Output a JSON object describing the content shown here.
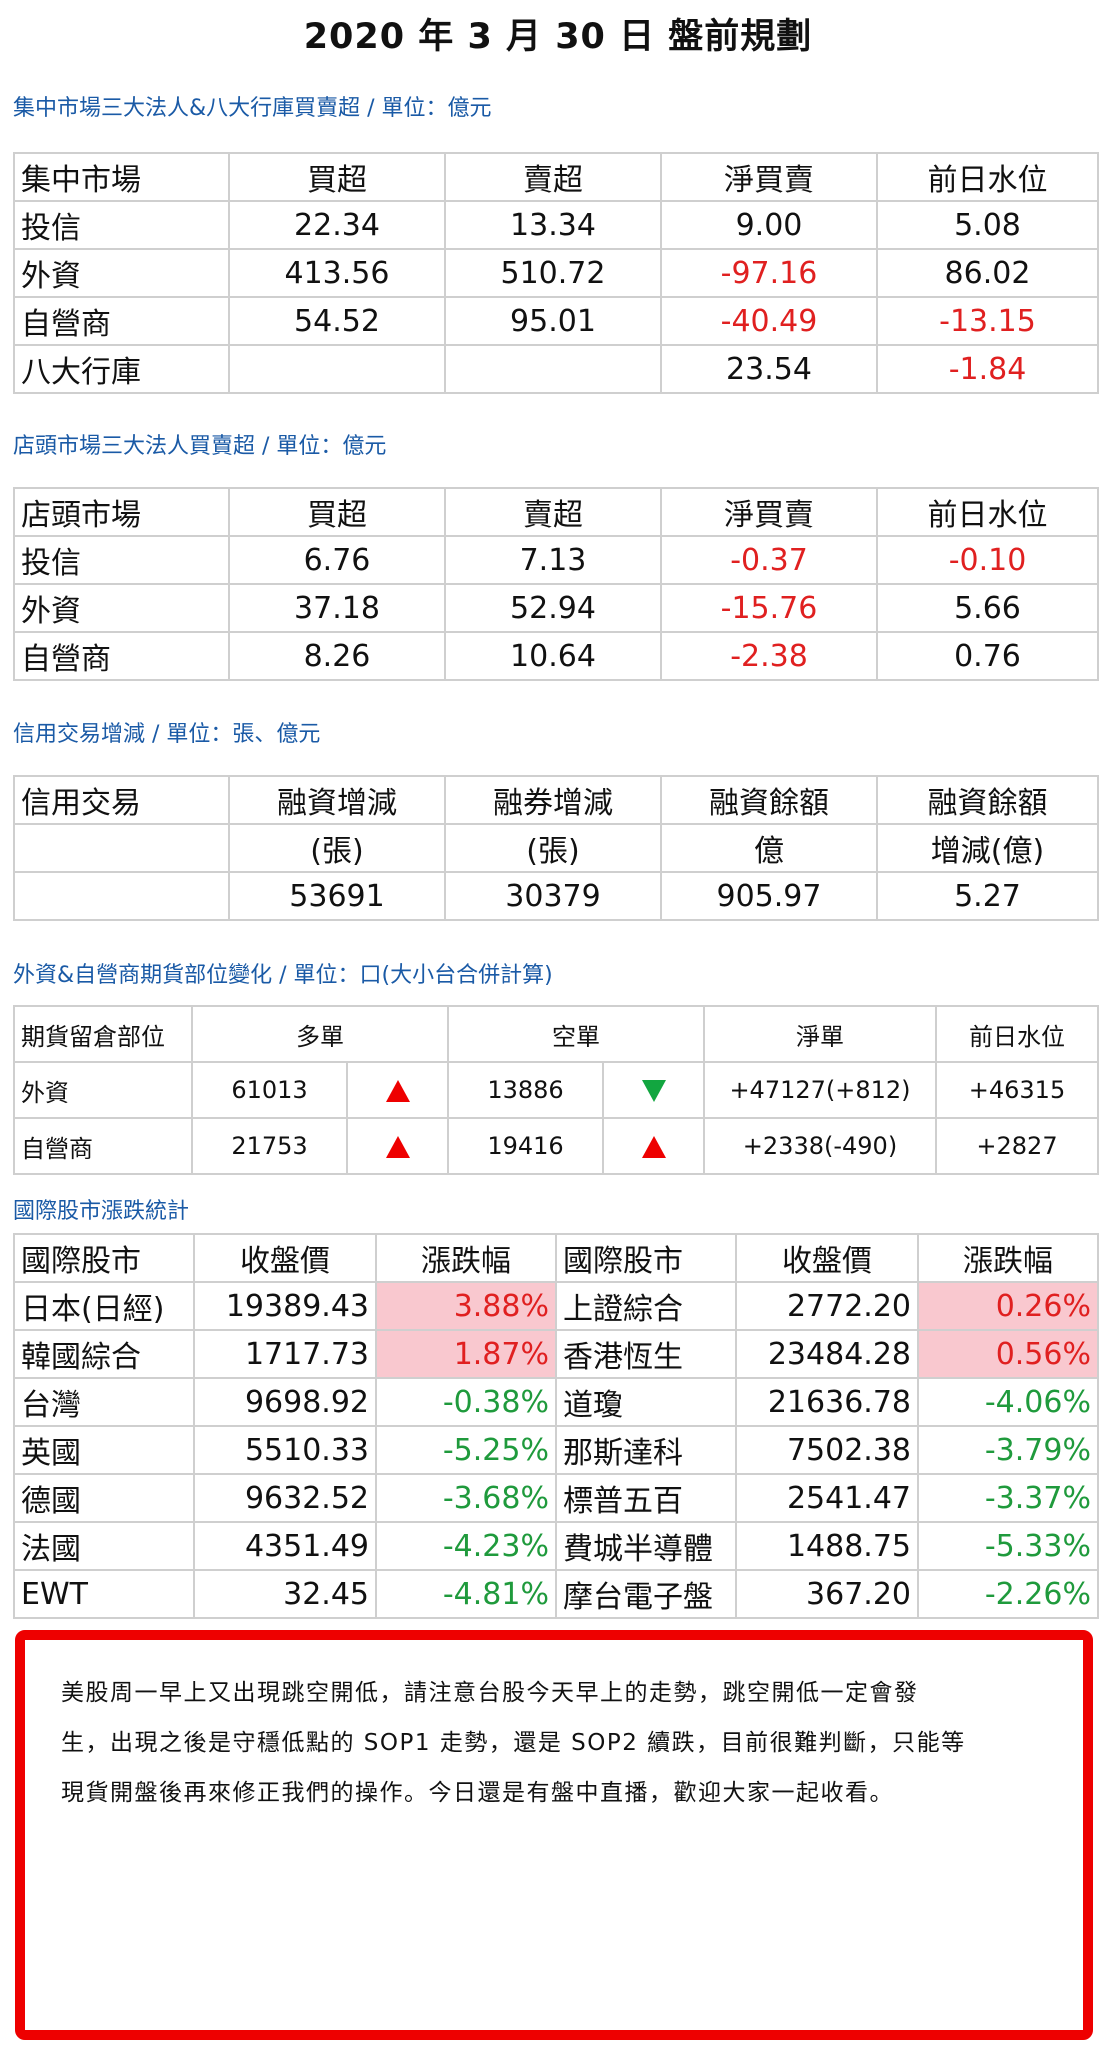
{
  "title": "2020 年 3 月 30 日  盤前規劃",
  "sec1": {
    "heading": "集中市場三大法人&八大行庫買賣超 / 單位：億元",
    "header": [
      "集中市場",
      "買超",
      "賣超",
      "淨買賣",
      "前日水位"
    ],
    "rows": [
      [
        "投信",
        "22.34",
        "13.34",
        "9.00",
        "5.08"
      ],
      [
        "外資",
        "413.56",
        "510.72",
        "-97.16",
        "86.02"
      ],
      [
        "自營商",
        "54.52",
        "95.01",
        "-40.49",
        "-13.15"
      ],
      [
        "八大行庫",
        "",
        "",
        "23.54",
        "-1.84"
      ]
    ]
  },
  "sec2": {
    "heading": "店頭市場三大法人買賣超 / 單位：億元",
    "header": [
      "店頭市場",
      "買超",
      "賣超",
      "淨買賣",
      "前日水位"
    ],
    "rows": [
      [
        "投信",
        "6.76",
        "7.13",
        "-0.37",
        "-0.10"
      ],
      [
        "外資",
        "37.18",
        "52.94",
        "-15.76",
        "5.66"
      ],
      [
        "自營商",
        "8.26",
        "10.64",
        "-2.38",
        "0.76"
      ]
    ]
  },
  "sec3": {
    "heading": "信用交易增減 / 單位：張、億元",
    "header": [
      "信用交易",
      "融資增減",
      "融券增減",
      "融資餘額",
      "融資餘額"
    ],
    "units": [
      "",
      "(張)",
      "(張)",
      "億",
      "增減(億)"
    ],
    "values": [
      "",
      "53691",
      "30379",
      "905.97",
      "5.27"
    ]
  },
  "sec4": {
    "heading": "外資&自營商期貨部位變化 / 單位：口(大小台合併計算)",
    "header": [
      "期貨留倉部位",
      "多單",
      "空單",
      "淨單",
      "前日水位"
    ],
    "rows": [
      {
        "name": "外資",
        "long": "61013",
        "long_dir": "up",
        "short": "13886",
        "short_dir": "down",
        "net": "+47127(+812)",
        "prev": "+46315"
      },
      {
        "name": "自營商",
        "long": "21753",
        "long_dir": "up",
        "short": "19416",
        "short_dir": "up",
        "net": "+2338(-490)",
        "prev": "+2827"
      }
    ]
  },
  "sec5": {
    "heading": "國際股市漲跌統計",
    "header": [
      "國際股市",
      "收盤價",
      "漲跌幅",
      "國際股市",
      "收盤價",
      "漲跌幅"
    ],
    "rows": [
      [
        "日本(日經)",
        "19389.43",
        "3.88%",
        "上證綜合",
        "2772.20",
        "0.26%"
      ],
      [
        "韓國綜合",
        "1717.73",
        "1.87%",
        "香港恆生",
        "23484.28",
        "0.56%"
      ],
      [
        "台灣",
        "9698.92",
        "-0.38%",
        "道瓊",
        "21636.78",
        "-4.06%"
      ],
      [
        "英國",
        "5510.33",
        "-5.25%",
        "那斯達科",
        "7502.38",
        "-3.79%"
      ],
      [
        "德國",
        "9632.52",
        "-3.68%",
        "標普五百",
        "2541.47",
        "-3.37%"
      ],
      [
        "法國",
        "4351.49",
        "-4.23%",
        "費城半導體",
        "1488.75",
        "-5.33%"
      ],
      [
        "EWT",
        "32.45",
        "-4.81%",
        "摩台電子盤",
        "367.20",
        "-2.26%"
      ]
    ]
  },
  "commentary": [
    "美股周一早上又出現跳空開低，請注意台股今天早上的走勢，跳空開低一定會發",
    "生，出現之後是守穩低點的 SOP1 走勢，還是 SOP2 續跌，目前很難判斷，只能等",
    "現貨開盤後再來修正我們的操作。今日還是有盤中直播，歡迎大家一起收看。"
  ],
  "colors": {
    "heading": "#1a5aa6",
    "negative": "#e02020",
    "down_green": "#1f9a3c",
    "positive_bg": "#f9c8cf",
    "frame": "#ee0000"
  }
}
